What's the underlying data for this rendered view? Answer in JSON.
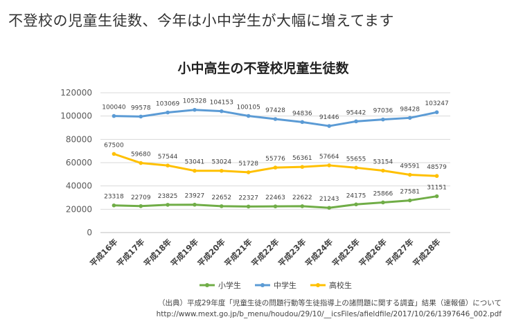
{
  "page": {
    "heading": "不登校の児童生徒数、今年は小中学生が大幅に増えてます"
  },
  "source": {
    "line1": "（出典）平成29年度「児童生徒の問題行動等生徒指導上の諸問題に関する調査」結果（速報値）について",
    "line2": "http://www.mext.go.jp/b_menu/houdou/29/10/__icsFiles/afieldfile/2017/10/26/1397646_002.pdf"
  },
  "chart_data": {
    "type": "line",
    "title": "小中高生の不登校児童生徒数",
    "categories": [
      "平成16年",
      "平成17年",
      "平成18年",
      "平成19年",
      "平成20年",
      "平成21年",
      "平成22年",
      "平成23年",
      "平成24年",
      "平成25年",
      "平成26年",
      "平成27年",
      "平成28年"
    ],
    "ylim": [
      0,
      120000
    ],
    "yticks": [
      "0",
      "20000",
      "40000",
      "60000",
      "80000",
      "100000",
      "120000"
    ],
    "grid": true,
    "legend_position": "bottom",
    "series": [
      {
        "name": "小学生",
        "color": "#70ad47",
        "values": [
          23318,
          22709,
          23825,
          23927,
          22652,
          22327,
          22463,
          22622,
          21243,
          24175,
          25866,
          27581,
          31151
        ]
      },
      {
        "name": "中学生",
        "color": "#5b9bd5",
        "values": [
          100040,
          99578,
          103069,
          105328,
          104153,
          100105,
          97428,
          94836,
          91446,
          95442,
          97036,
          98428,
          103247
        ]
      },
      {
        "name": "高校生",
        "color": "#ffc000",
        "values": [
          67500,
          59680,
          57544,
          53041,
          53024,
          51728,
          55776,
          56361,
          57664,
          55655,
          53154,
          49591,
          48579
        ]
      }
    ]
  }
}
